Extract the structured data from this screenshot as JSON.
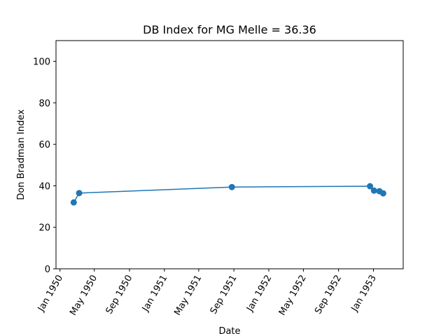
{
  "chart_data": {
    "type": "line",
    "title": "DB Index for MG Melle = 36.36",
    "xlabel": "Date",
    "ylabel": "Don Bradman Index",
    "ylim": [
      0,
      110
    ],
    "xlim": [
      "1949-12-18",
      "1953-04-15"
    ],
    "yticks": [
      0,
      20,
      40,
      60,
      80,
      100
    ],
    "xticks": [
      {
        "date": "1950-01-01",
        "label": "Jan 1950"
      },
      {
        "date": "1950-05-01",
        "label": "May 1950"
      },
      {
        "date": "1950-09-01",
        "label": "Sep 1950"
      },
      {
        "date": "1951-01-01",
        "label": "Jan 1951"
      },
      {
        "date": "1951-05-01",
        "label": "May 1951"
      },
      {
        "date": "1951-09-01",
        "label": "Sep 1951"
      },
      {
        "date": "1952-01-01",
        "label": "Jan 1952"
      },
      {
        "date": "1952-05-01",
        "label": "May 1952"
      },
      {
        "date": "1952-09-01",
        "label": "Sep 1952"
      },
      {
        "date": "1953-01-01",
        "label": "Jan 1953"
      }
    ],
    "grid": false,
    "series": [
      {
        "color": "#1f77b4",
        "marker": "circle",
        "x": [
          "1950-02-18",
          "1950-03-09",
          "1951-08-25",
          "1952-12-20",
          "1953-01-03",
          "1953-01-22",
          "1953-02-04"
        ],
        "y": [
          32.0,
          36.5,
          39.4,
          39.8,
          37.7,
          37.4,
          36.36
        ]
      }
    ]
  }
}
